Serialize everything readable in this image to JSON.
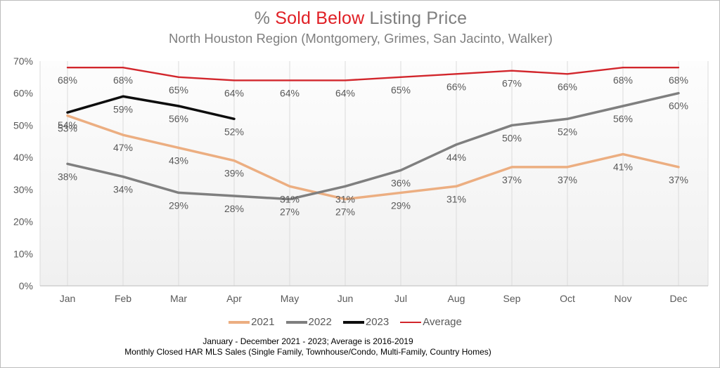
{
  "window": {
    "border_color": "#bdbdbd",
    "background": "#ffffff"
  },
  "header": {
    "title_prefix": "% ",
    "title_emphasis": "Sold Below",
    "title_rest": " Listing Price",
    "title_gray": "#7f7f7f",
    "title_red": "#e01f25",
    "subtitle": "North Houston Region (Montgomery, Grimes, San Jacinto, Walker)"
  },
  "chart_data": {
    "type": "line",
    "title": "% Sold Below Listing Price",
    "subtitle": "North Houston Region (Montgomery, Grimes, San Jacinto, Walker)",
    "categories": [
      "Jan",
      "Feb",
      "Mar",
      "Apr",
      "May",
      "Jun",
      "Jul",
      "Aug",
      "Sep",
      "Oct",
      "Nov",
      "Dec"
    ],
    "ylim": [
      0,
      70
    ],
    "y_ticks": [
      0,
      10,
      20,
      30,
      40,
      50,
      60,
      70
    ],
    "y_tick_suffix": "%",
    "grid": "vertical",
    "legend_position": "bottom",
    "label_suffix": "%",
    "label_color": "#595959",
    "axis_text_color": "#595959",
    "gridline_color": "#dbdbdb",
    "axis_line_color": "#c6c6c6",
    "plot_bg_top": "#fdfdfd",
    "plot_bg_bottom": "#f0f0f0",
    "series": [
      {
        "name": "2021",
        "color": "#ecae81",
        "line_width": 3.5,
        "values": [
          53,
          47,
          43,
          39,
          31,
          27,
          29,
          31,
          37,
          37,
          41,
          37
        ]
      },
      {
        "name": "2022",
        "color": "#7f7f7f",
        "line_width": 3.5,
        "values": [
          38,
          34,
          29,
          28,
          27,
          31,
          36,
          44,
          50,
          52,
          56,
          60
        ]
      },
      {
        "name": "2023",
        "color": "#0d0d0d",
        "line_width": 3.5,
        "values": [
          54,
          59,
          56,
          52,
          null,
          null,
          null,
          null,
          null,
          null,
          null,
          null
        ]
      },
      {
        "name": "Average",
        "color": "#d2262c",
        "line_width": 2.4,
        "values": [
          68,
          68,
          65,
          64,
          64,
          64,
          65,
          66,
          67,
          66,
          68,
          68
        ]
      }
    ]
  },
  "footnotes": {
    "line1": "January - December 2021 - 2023; Average is 2016-2019",
    "line2": "Monthly Closed HAR MLS Sales (Single Family, Townhouse/Condo, Multi-Family, Country Homes)"
  }
}
